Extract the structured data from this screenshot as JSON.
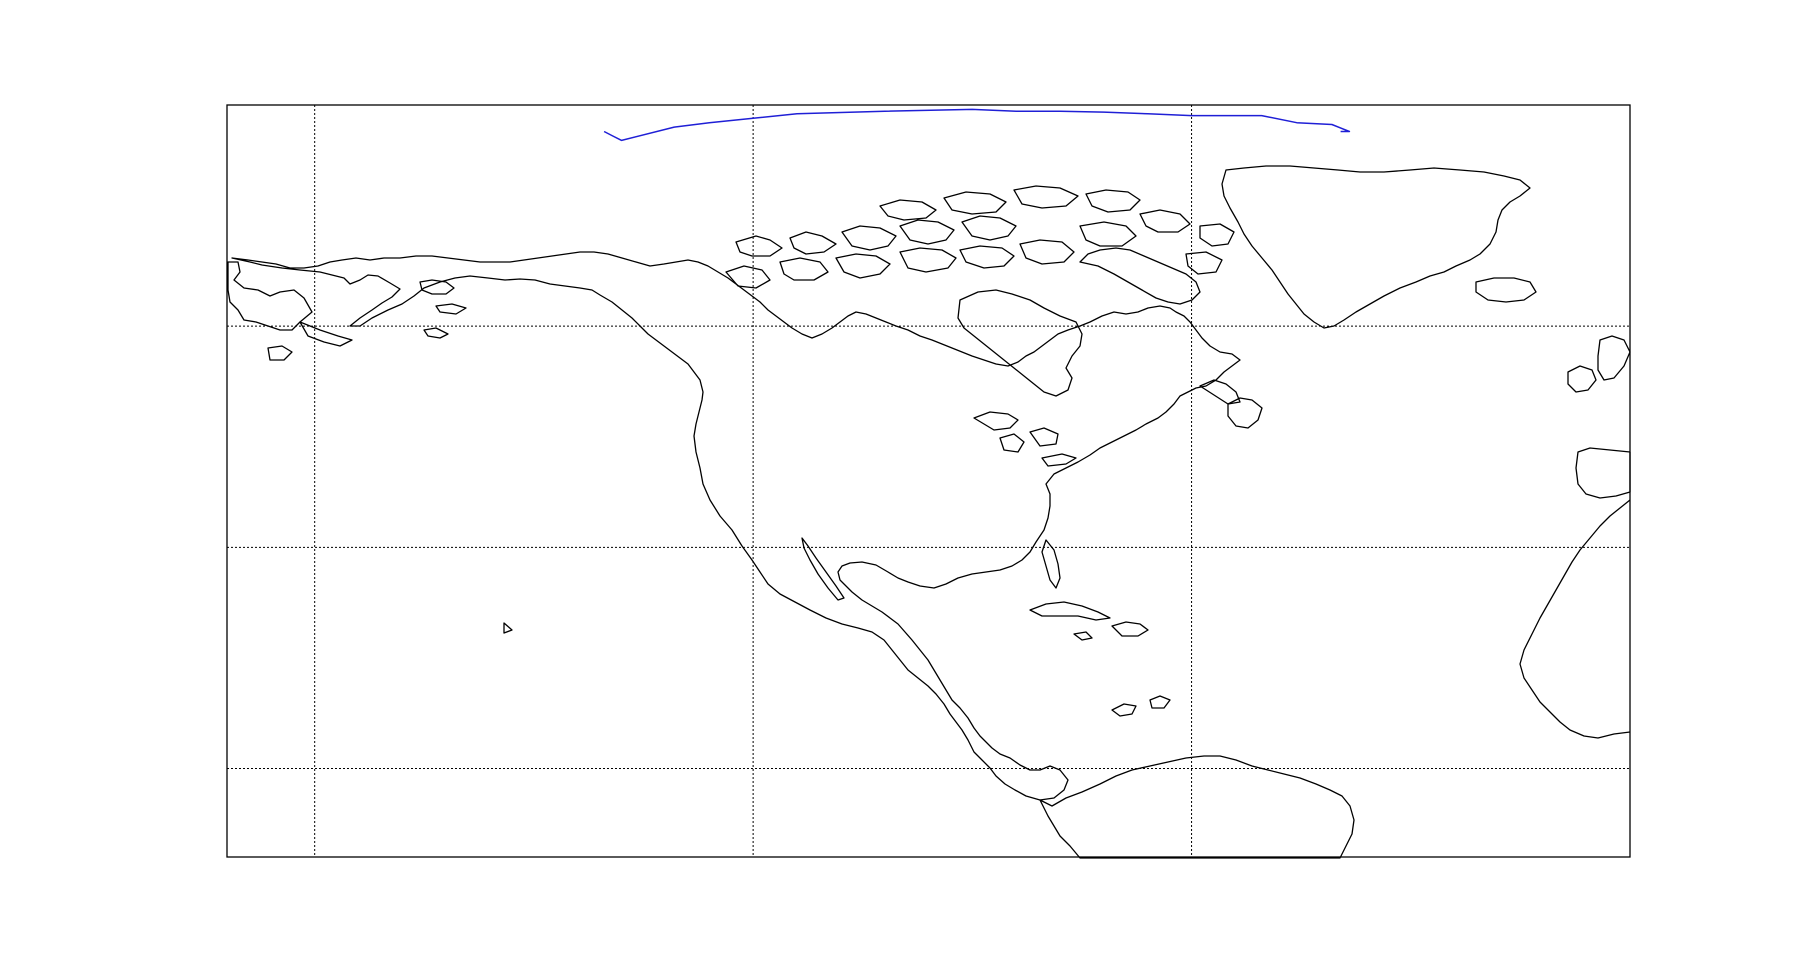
{
  "map": {
    "projection": "cylindrical",
    "extent": {
      "lon_min": -180,
      "lon_max": -20,
      "lat_min": -10,
      "lat_max": 75
    },
    "meridians": [
      -170,
      -120,
      -70
    ],
    "parallels": [
      0,
      25,
      50,
      75
    ],
    "grid_style": "dotted",
    "coastline_color": "#000000",
    "track": {
      "color": "#1f1fd6",
      "points": [
        [
          -137,
          72.0
        ],
        [
          -136,
          71.5
        ],
        [
          -135,
          71.0
        ],
        [
          -129,
          72.5
        ],
        [
          -125,
          73.0
        ],
        [
          -120,
          73.5
        ],
        [
          -115,
          74.0
        ],
        [
          -105,
          74.3
        ],
        [
          -95,
          74.5
        ],
        [
          -90,
          74.3
        ],
        [
          -85,
          74.3
        ],
        [
          -80,
          74.2
        ],
        [
          -75,
          74.0
        ],
        [
          -70,
          73.8
        ],
        [
          -62,
          73.8
        ],
        [
          -58,
          73.0
        ],
        [
          -54,
          72.8
        ],
        [
          -52,
          72.0
        ],
        [
          -53,
          72.0
        ]
      ]
    }
  }
}
